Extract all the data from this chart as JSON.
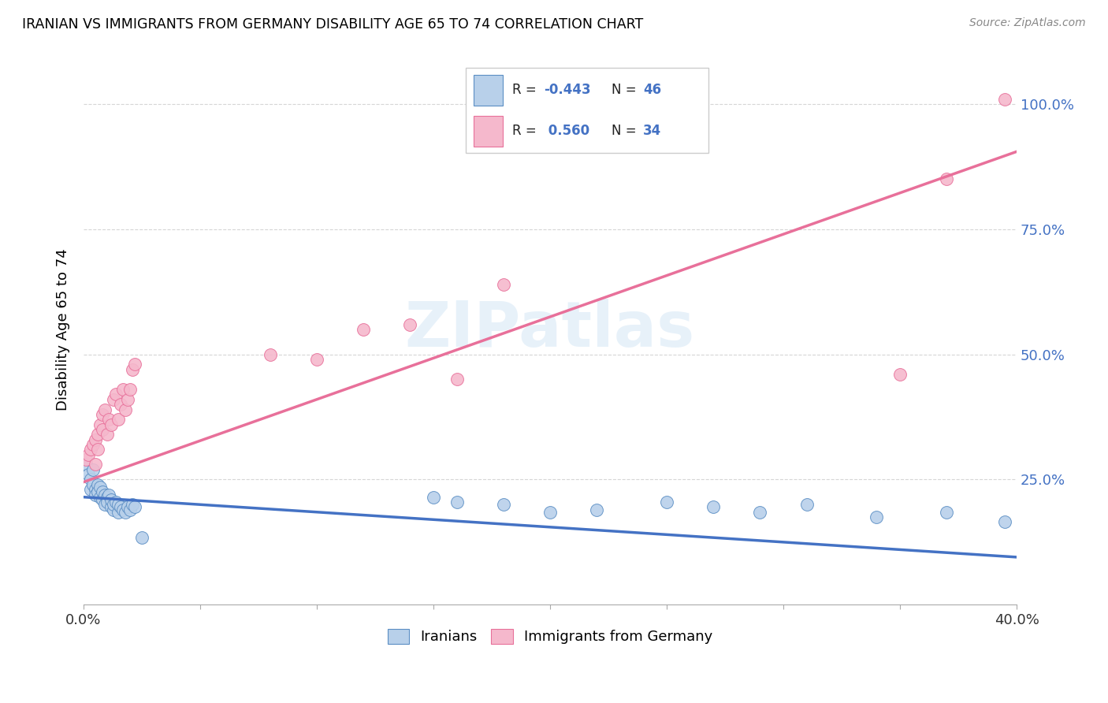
{
  "title": "IRANIAN VS IMMIGRANTS FROM GERMANY DISABILITY AGE 65 TO 74 CORRELATION CHART",
  "source": "Source: ZipAtlas.com",
  "ylabel": "Disability Age 65 to 74",
  "legend_label1": "Iranians",
  "legend_label2": "Immigrants from Germany",
  "r1": -0.443,
  "n1": 46,
  "r2": 0.56,
  "n2": 34,
  "color_iranians_fill": "#b8d0ea",
  "color_iranians_edge": "#5b8ec4",
  "color_germany_fill": "#f5b8cc",
  "color_germany_edge": "#e8709a",
  "color_line1": "#4472c4",
  "color_line2": "#e8709a",
  "watermark": "ZIPatlas",
  "xmin": 0.0,
  "xmax": 0.4,
  "ymin": 0.0,
  "ymax": 1.1,
  "iranians_x": [
    0.001,
    0.002,
    0.003,
    0.003,
    0.004,
    0.004,
    0.005,
    0.005,
    0.006,
    0.006,
    0.007,
    0.007,
    0.008,
    0.008,
    0.009,
    0.009,
    0.01,
    0.01,
    0.011,
    0.012,
    0.012,
    0.013,
    0.013,
    0.014,
    0.015,
    0.015,
    0.016,
    0.017,
    0.018,
    0.019,
    0.02,
    0.021,
    0.022,
    0.025,
    0.15,
    0.16,
    0.18,
    0.2,
    0.22,
    0.25,
    0.27,
    0.29,
    0.31,
    0.34,
    0.37,
    0.395
  ],
  "iranians_y": [
    0.28,
    0.26,
    0.25,
    0.23,
    0.27,
    0.24,
    0.23,
    0.22,
    0.24,
    0.225,
    0.235,
    0.215,
    0.225,
    0.21,
    0.22,
    0.2,
    0.215,
    0.205,
    0.22,
    0.195,
    0.21,
    0.19,
    0.2,
    0.205,
    0.185,
    0.2,
    0.195,
    0.19,
    0.185,
    0.195,
    0.19,
    0.2,
    0.195,
    0.135,
    0.215,
    0.205,
    0.2,
    0.185,
    0.19,
    0.205,
    0.195,
    0.185,
    0.2,
    0.175,
    0.185,
    0.165
  ],
  "germany_x": [
    0.001,
    0.002,
    0.003,
    0.004,
    0.005,
    0.005,
    0.006,
    0.006,
    0.007,
    0.008,
    0.008,
    0.009,
    0.01,
    0.011,
    0.012,
    0.013,
    0.014,
    0.015,
    0.016,
    0.017,
    0.018,
    0.019,
    0.02,
    0.021,
    0.022,
    0.08,
    0.1,
    0.12,
    0.14,
    0.16,
    0.18,
    0.35,
    0.37,
    0.395
  ],
  "germany_y": [
    0.29,
    0.3,
    0.31,
    0.32,
    0.28,
    0.33,
    0.34,
    0.31,
    0.36,
    0.38,
    0.35,
    0.39,
    0.34,
    0.37,
    0.36,
    0.41,
    0.42,
    0.37,
    0.4,
    0.43,
    0.39,
    0.41,
    0.43,
    0.47,
    0.48,
    0.5,
    0.49,
    0.55,
    0.56,
    0.45,
    0.64,
    0.46,
    0.85,
    1.01
  ]
}
